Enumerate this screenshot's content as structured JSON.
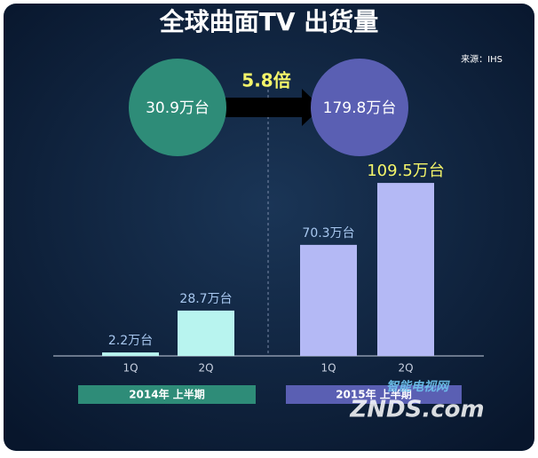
{
  "chart_data": {
    "type": "bar",
    "title": "全球曲面TV 出货量",
    "source": "来源：IHS",
    "ratio": 5.8,
    "ratio_label": "5.8倍",
    "groups": [
      {
        "name": "2014年 上半期",
        "color": "#2e8c78",
        "bar_color": "#b8f4ef",
        "total": 30.9,
        "total_label": "30.9万台",
        "categories": [
          "1Q",
          "2Q"
        ],
        "values": [
          2.2,
          28.7
        ],
        "value_labels": [
          "2.2万台",
          "28.7万台"
        ]
      },
      {
        "name": "2015年 上半期",
        "color": "#5a5fb3",
        "bar_color": "#b4b9f5",
        "total": 179.8,
        "total_label": "179.8万台",
        "categories": [
          "1Q",
          "2Q"
        ],
        "values": [
          70.3,
          109.5
        ],
        "value_labels": [
          "70.3万台",
          "109.5万台"
        ]
      }
    ],
    "watermark": "智能电视网",
    "watermark_brand": "ZNDS.com"
  }
}
